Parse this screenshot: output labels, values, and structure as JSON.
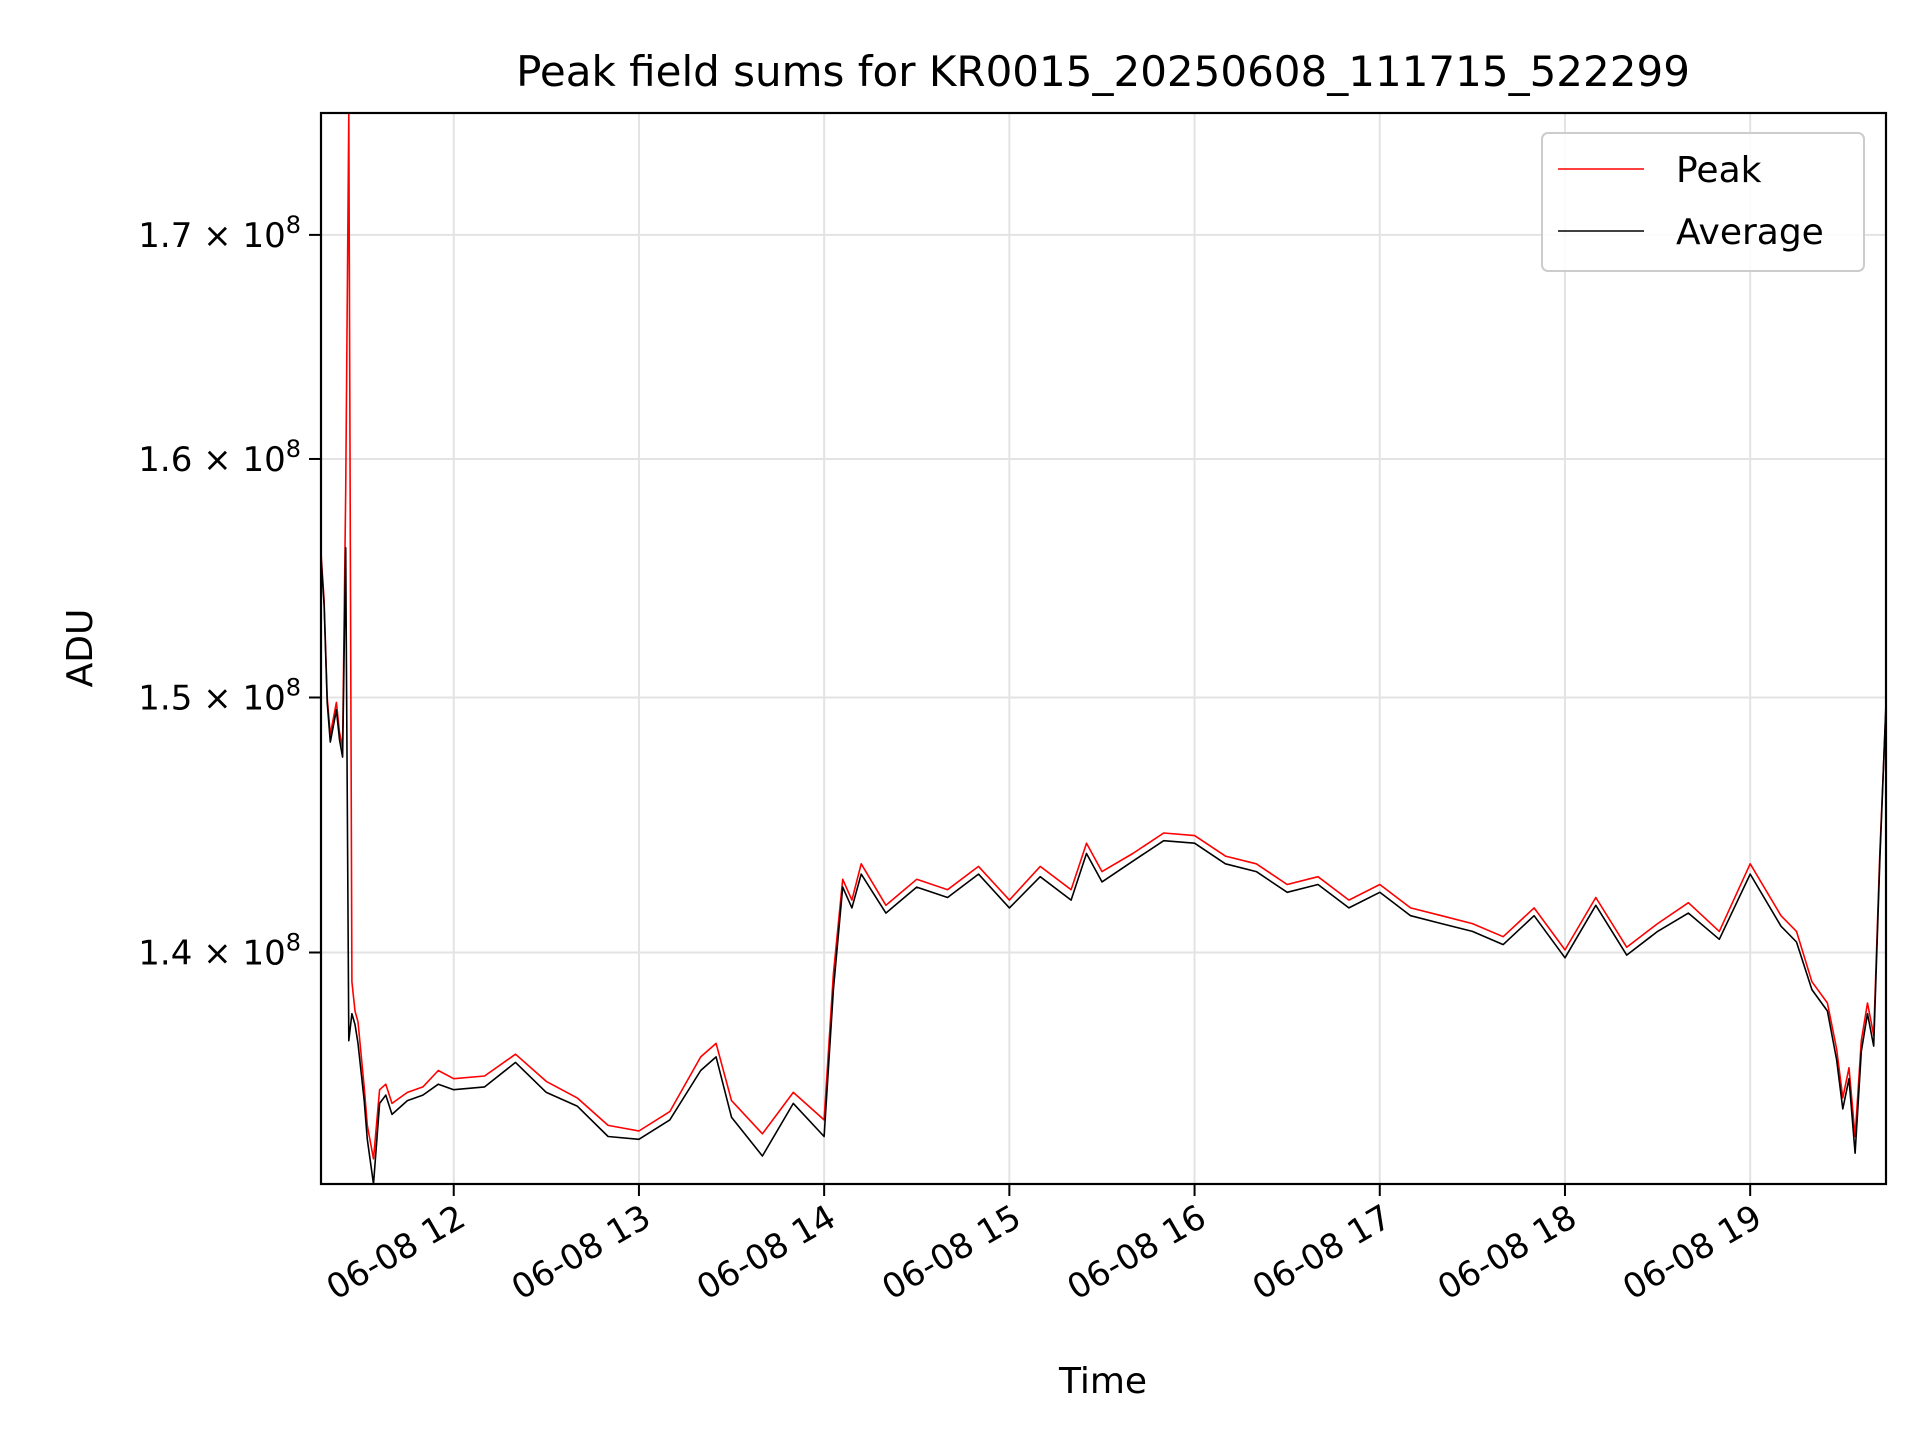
{
  "chart_data": {
    "type": "line",
    "title": "Peak field sums for KR0015_20250608_111715_522299",
    "xlabel": "Time",
    "ylabel": "ADU",
    "y_scale": "log",
    "grid": true,
    "legend_position": "top-right",
    "xlim": [
      "2025-06-08 11:17",
      "2025-06-08 19:44"
    ],
    "ylim": [
      131500000,
      175700000
    ],
    "x_ticks": [
      {
        "value": "2025-06-08 12:00",
        "label": "06-08 12"
      },
      {
        "value": "2025-06-08 13:00",
        "label": "06-08 13"
      },
      {
        "value": "2025-06-08 14:00",
        "label": "06-08 14"
      },
      {
        "value": "2025-06-08 15:00",
        "label": "06-08 15"
      },
      {
        "value": "2025-06-08 16:00",
        "label": "06-08 16"
      },
      {
        "value": "2025-06-08 17:00",
        "label": "06-08 17"
      },
      {
        "value": "2025-06-08 18:00",
        "label": "06-08 18"
      },
      {
        "value": "2025-06-08 19:00",
        "label": "06-08 19"
      }
    ],
    "y_ticks": [
      {
        "value": 140000000,
        "mantissa": "1.4",
        "base": "10",
        "exp": "8"
      },
      {
        "value": 150000000,
        "mantissa": "1.5",
        "base": "10",
        "exp": "8"
      },
      {
        "value": 160000000,
        "mantissa": "1.6",
        "base": "10",
        "exp": "8"
      },
      {
        "value": 170000000,
        "mantissa": "1.7",
        "base": "10",
        "exp": "8"
      }
    ],
    "x": [
      "11:17",
      "11:18",
      "11:19",
      "11:20",
      "11:22",
      "11:23",
      "11:24",
      "11:25",
      "11:26",
      "11:27",
      "11:28",
      "11:29",
      "11:31",
      "11:32",
      "11:34",
      "11:36",
      "11:38",
      "11:40",
      "11:45",
      "11:50",
      "11:55",
      "12:00",
      "12:10",
      "12:20",
      "12:30",
      "12:40",
      "12:50",
      "13:00",
      "13:10",
      "13:20",
      "13:25",
      "13:30",
      "13:40",
      "13:50",
      "14:00",
      "14:03",
      "14:06",
      "14:09",
      "14:12",
      "14:20",
      "14:30",
      "14:40",
      "14:50",
      "15:00",
      "15:10",
      "15:20",
      "15:25",
      "15:30",
      "15:40",
      "15:50",
      "16:00",
      "16:10",
      "16:20",
      "16:30",
      "16:40",
      "16:50",
      "17:00",
      "17:10",
      "17:20",
      "17:30",
      "17:40",
      "17:50",
      "18:00",
      "18:10",
      "18:20",
      "18:30",
      "18:40",
      "18:50",
      "19:00",
      "19:10",
      "19:15",
      "19:20",
      "19:25",
      "19:28",
      "19:30",
      "19:32",
      "19:34",
      "19:36",
      "19:38",
      "19:40",
      "19:42",
      "19:44"
    ],
    "series": [
      {
        "name": "Peak",
        "color": "#ff0000",
        "values": [
          156000000,
          154000000,
          150000000,
          148500000,
          149800000,
          148600000,
          148000000,
          158600000,
          175700000,
          138900000,
          137800000,
          137400000,
          135000000,
          133600000,
          132400000,
          134900000,
          135100000,
          134400000,
          134800000,
          135000000,
          135600000,
          135300000,
          135400000,
          136200000,
          135200000,
          134600000,
          133600000,
          133400000,
          134100000,
          136100000,
          136600000,
          134500000,
          133300000,
          134800000,
          133800000,
          139200000,
          142800000,
          142000000,
          143400000,
          141800000,
          142800000,
          142400000,
          143300000,
          142000000,
          143300000,
          142400000,
          144200000,
          143100000,
          143800000,
          144600000,
          144500000,
          143700000,
          143400000,
          142600000,
          142900000,
          142000000,
          142600000,
          141700000,
          141400000,
          141100000,
          140600000,
          141700000,
          140100000,
          142100000,
          140200000,
          141100000,
          141900000,
          140800000,
          143400000,
          141400000,
          140800000,
          138900000,
          138100000,
          136400000,
          134600000,
          135700000,
          133200000,
          136700000,
          138100000,
          136900000,
          143800000,
          149600000
        ]
      },
      {
        "name": "Average",
        "color": "#000000",
        "values": [
          155800000,
          153800000,
          149800000,
          148200000,
          149500000,
          148300000,
          147600000,
          156200000,
          136700000,
          137700000,
          137300000,
          136600000,
          134500000,
          133100000,
          131500000,
          134400000,
          134700000,
          134000000,
          134500000,
          134700000,
          135100000,
          134900000,
          135000000,
          135900000,
          134800000,
          134300000,
          133200000,
          133100000,
          133800000,
          135600000,
          136100000,
          133900000,
          132500000,
          134400000,
          133200000,
          138600000,
          142500000,
          141700000,
          143000000,
          141500000,
          142500000,
          142100000,
          143000000,
          141700000,
          142900000,
          142000000,
          143800000,
          142700000,
          143500000,
          144300000,
          144200000,
          143400000,
          143100000,
          142300000,
          142600000,
          141700000,
          142300000,
          141400000,
          141100000,
          140800000,
          140300000,
          141400000,
          139800000,
          141800000,
          139900000,
          140800000,
          141500000,
          140500000,
          143000000,
          141000000,
          140400000,
          138600000,
          137800000,
          136000000,
          134200000,
          135300000,
          132600000,
          136300000,
          137700000,
          136500000,
          143500000,
          149800000
        ]
      }
    ]
  }
}
